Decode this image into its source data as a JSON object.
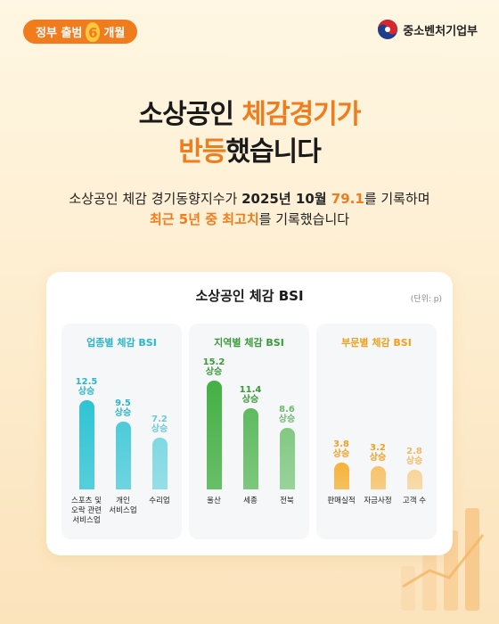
{
  "badge": {
    "left": "정부 출범",
    "num": "6",
    "right": "개월"
  },
  "ministry": {
    "name": "중소벤처기업부",
    "emblem_icon": "taegeuk-emblem-icon"
  },
  "headline": {
    "line1_a": "소상공인 ",
    "line1_b": "체감경기가",
    "line2_a": "반등",
    "line2_b": "했습니다"
  },
  "subtext": {
    "line1_a": "소상공인 체감 경기동향지수가 ",
    "line1_b": "2025년 10월 ",
    "line1_c": "79.1",
    "line1_d": "를 기록하며",
    "line2_a": "최근 5년 중 최고치",
    "line2_b": "를 기록했습니다"
  },
  "card": {
    "title": "소상공인 체감 BSI",
    "unit": "(단위: p)"
  },
  "colors": {
    "accent": "#f07c1e",
    "industry_text": "#2bb6c9",
    "industry_bar": "#2ec4d4",
    "region_text": "#3a9a3a",
    "region_bar": "#44b044",
    "sector_text": "#f0a020",
    "sector_bar": "#f6b23a"
  },
  "chart_data": [
    {
      "type": "bar",
      "title": "업종별 체감 BSI",
      "categories": [
        "스포츠 및\n오락 관련\n서비스업",
        "개인\n서비스업",
        "수리업"
      ],
      "values": [
        12.5,
        9.5,
        7.2
      ],
      "value_suffix": "상승",
      "ylim": [
        0,
        16
      ]
    },
    {
      "type": "bar",
      "title": "지역별 체감 BSI",
      "categories": [
        "울산",
        "세종",
        "전북"
      ],
      "values": [
        15.2,
        11.4,
        8.6
      ],
      "value_suffix": "상승",
      "ylim": [
        0,
        16
      ]
    },
    {
      "type": "bar",
      "title": "부문별 체감 BSI",
      "categories": [
        "판매실적",
        "자금사정",
        "고객 수"
      ],
      "values": [
        3.8,
        3.2,
        2.8
      ],
      "value_suffix": "상승",
      "ylim": [
        0,
        16
      ]
    }
  ]
}
